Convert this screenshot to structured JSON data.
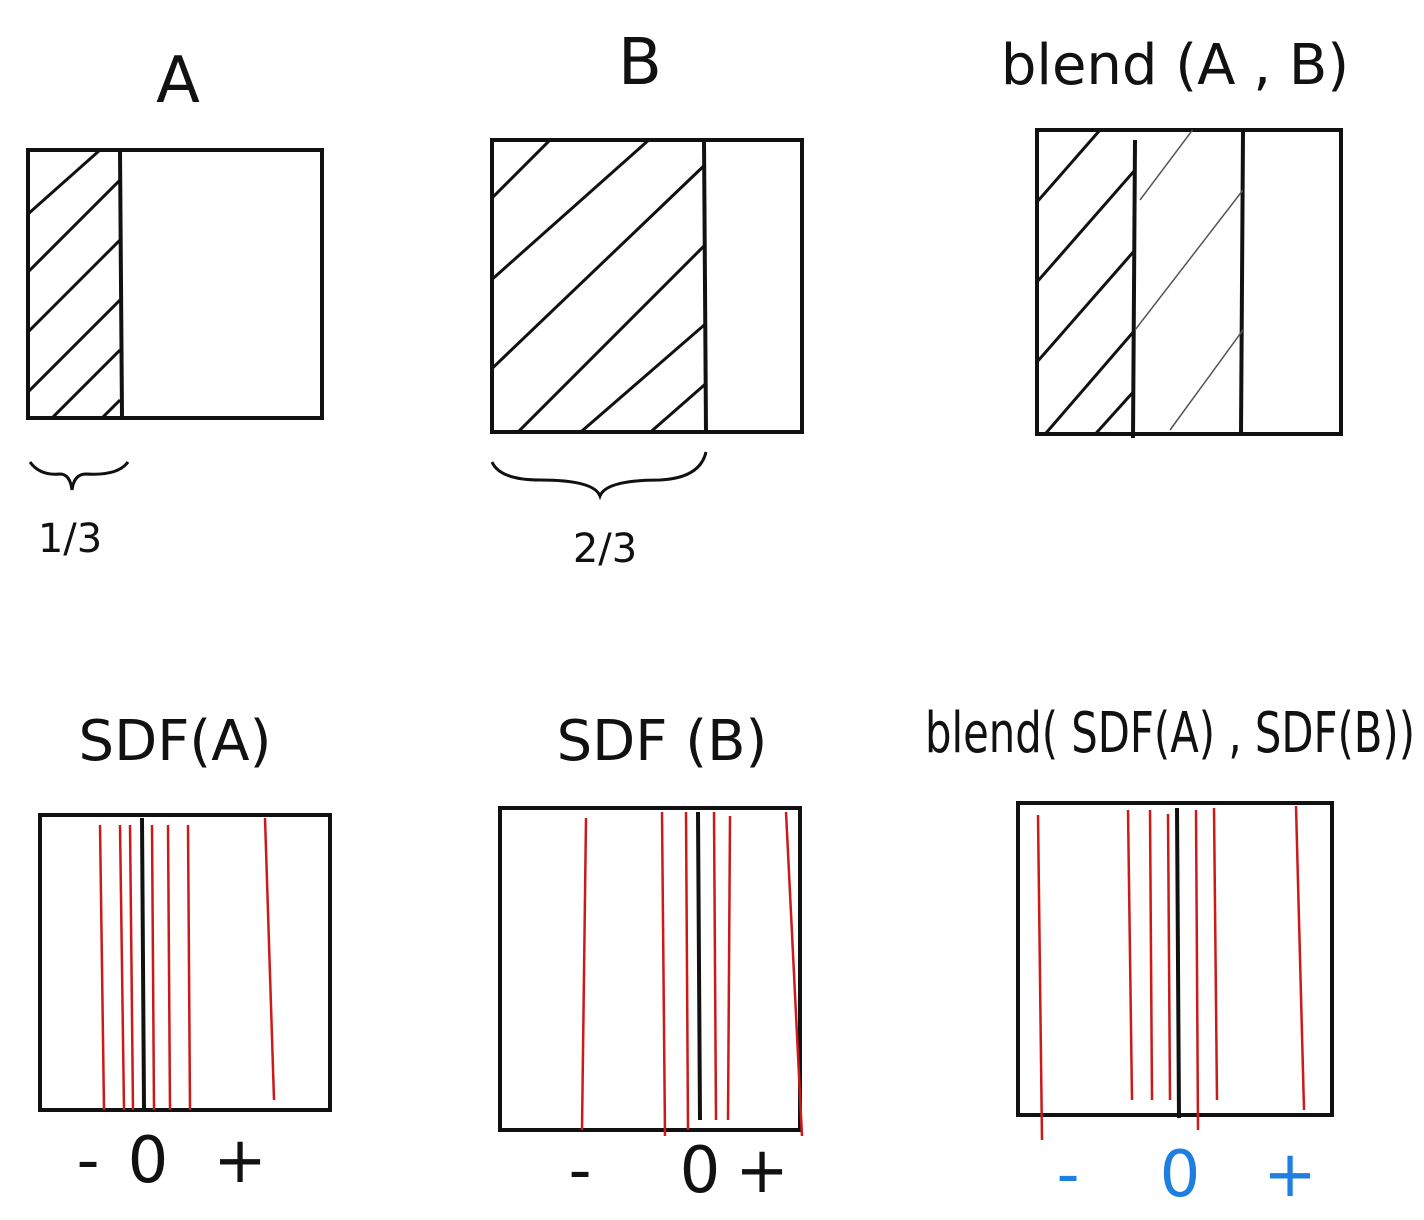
{
  "top_row": {
    "panel_a": {
      "title": "A",
      "fraction_label": "1/3",
      "shaded_fraction": 0.3333
    },
    "panel_b": {
      "title": "B",
      "fraction_label": "2/3",
      "shaded_fraction": 0.6667
    },
    "panel_blend": {
      "title": "blend (A , B)"
    }
  },
  "bottom_row": {
    "panel_sdf_a": {
      "title": "SDF(A)",
      "minus": "-",
      "zero": "0",
      "plus": "+"
    },
    "panel_sdf_b": {
      "title": "SDF (B)",
      "minus": "-",
      "zero": "0",
      "plus": "+"
    },
    "panel_sdf_blend": {
      "title": "blend( SDF(A) , SDF(B))",
      "minus": "-",
      "zero": "0",
      "plus": "+"
    }
  },
  "colors": {
    "ink": "#111111",
    "contour": "#cc1a1a",
    "axis_blend": "#1f7fe0"
  }
}
